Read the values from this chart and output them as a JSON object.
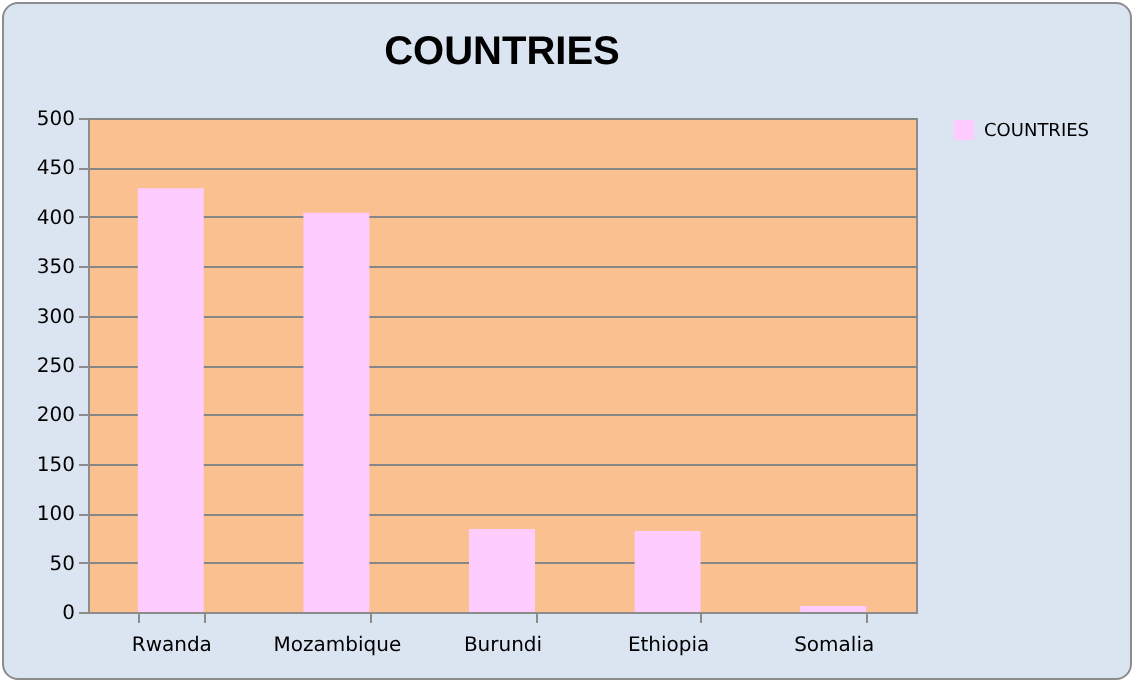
{
  "chart_data": {
    "type": "bar",
    "title": "COUNTRIES",
    "categories": [
      "Rwanda",
      "Mozambique",
      "Burundi",
      "Ethiopia",
      "Somalia"
    ],
    "series": [
      {
        "name": "COUNTRIES",
        "color": "#ffccff",
        "values": [
          429,
          404,
          84,
          82,
          6
        ]
      }
    ],
    "ylim": [
      0,
      500
    ],
    "yticks": [
      0,
      50,
      100,
      150,
      200,
      250,
      300,
      350,
      400,
      450,
      500
    ],
    "grid": "y",
    "legend": "right"
  }
}
